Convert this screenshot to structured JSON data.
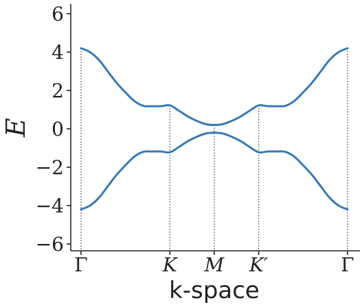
{
  "chart_data": {
    "type": "line",
    "xlabel": "k-space",
    "ylabel": "E",
    "ylim": [
      -6.5,
      6.5
    ],
    "yticks": [
      6,
      4,
      2,
      0,
      -2,
      -4,
      -6
    ],
    "ytick_labels": [
      "6",
      "4",
      "2",
      "0",
      "−2",
      "−4",
      "−6"
    ],
    "xticks": [
      {
        "label": "Γ",
        "x": 0
      },
      {
        "label": "K",
        "x": 1
      },
      {
        "label": "M",
        "x": 1.5
      },
      {
        "label": "K′",
        "x": 2
      },
      {
        "label": "Γ",
        "x": 3
      }
    ],
    "vlines_at": [
      0,
      1,
      1.5,
      2,
      3
    ],
    "color": "#3878b5",
    "series": [
      {
        "x": [
          0,
          0.1,
          0.2,
          0.3,
          0.4,
          0.5,
          0.6,
          0.7,
          0.8,
          0.9,
          1.0,
          1.1,
          1.2,
          1.3,
          1.4,
          1.5,
          1.6,
          1.7,
          1.8,
          1.9,
          2.0,
          2.1,
          2.2,
          2.3,
          2.4,
          2.5,
          2.6,
          2.7,
          2.8,
          2.9,
          3.0
        ],
        "values": [
          4.2,
          4.0,
          3.6,
          3.0,
          2.4,
          1.9,
          1.45,
          1.2,
          1.18,
          1.18,
          1.22,
          0.95,
          0.65,
          0.42,
          0.25,
          0.2,
          0.25,
          0.42,
          0.65,
          0.95,
          1.22,
          1.18,
          1.18,
          1.2,
          1.45,
          1.9,
          2.4,
          3.0,
          3.6,
          4.0,
          4.2
        ]
      },
      {
        "x": [
          0,
          0.1,
          0.2,
          0.3,
          0.4,
          0.5,
          0.6,
          0.7,
          0.8,
          0.9,
          1.0,
          1.1,
          1.2,
          1.3,
          1.4,
          1.5,
          1.6,
          1.7,
          1.8,
          1.9,
          2.0,
          2.1,
          2.2,
          2.3,
          2.4,
          2.5,
          2.6,
          2.7,
          2.8,
          2.9,
          3.0
        ],
        "values": [
          -4.2,
          -4.0,
          -3.6,
          -3.0,
          -2.4,
          -1.9,
          -1.45,
          -1.2,
          -1.18,
          -1.18,
          -1.22,
          -0.95,
          -0.65,
          -0.42,
          -0.25,
          -0.2,
          -0.25,
          -0.42,
          -0.65,
          -0.95,
          -1.22,
          -1.18,
          -1.18,
          -1.2,
          -1.45,
          -1.9,
          -2.4,
          -3.0,
          -3.6,
          -4.0,
          -4.2
        ]
      }
    ]
  }
}
